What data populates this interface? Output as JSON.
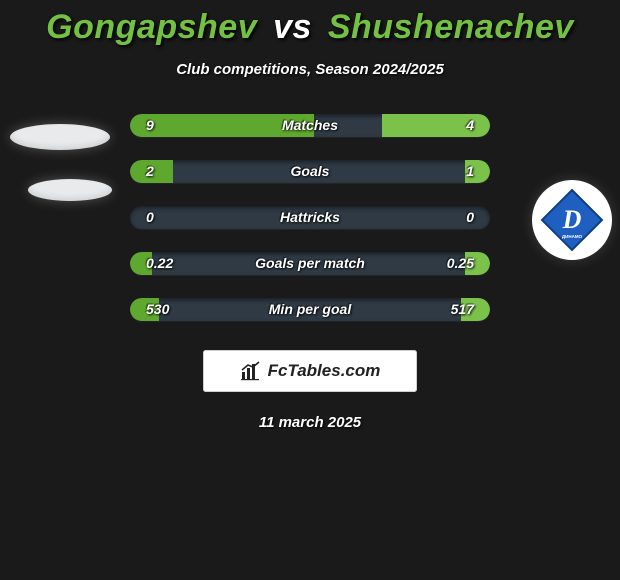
{
  "title": {
    "player1": "Gongapshev",
    "vs": "vs",
    "player2": "Shushenachev",
    "color_p1": "#74c043",
    "color_vs": "#ffffff",
    "color_p2": "#74c043"
  },
  "subtitle": "Club competitions, Season 2024/2025",
  "bar_track_color": "#2f3a45",
  "bar_left_color": "#5fa82f",
  "bar_right_color": "#7bc24a",
  "stats": [
    {
      "label": "Matches",
      "left_val": "9",
      "right_val": "4",
      "left_pct": 51,
      "right_pct": 30
    },
    {
      "label": "Goals",
      "left_val": "2",
      "right_val": "1",
      "left_pct": 12,
      "right_pct": 7
    },
    {
      "label": "Hattricks",
      "left_val": "0",
      "right_val": "0",
      "left_pct": 0,
      "right_pct": 0
    },
    {
      "label": "Goals per match",
      "left_val": "0.22",
      "right_val": "0.25",
      "left_pct": 6,
      "right_pct": 7
    },
    {
      "label": "Min per goal",
      "left_val": "530",
      "right_val": "517",
      "left_pct": 8,
      "right_pct": 8
    }
  ],
  "badge": {
    "bg": "#ffffff",
    "diamond_fill": "#1f5fbf",
    "diamond_stroke": "#0d3e84",
    "letter": "D",
    "letter_color": "#ffffff"
  },
  "footer_brand": "FcTables.com",
  "date": "11 march 2025",
  "chart_icon_color": "#222222"
}
